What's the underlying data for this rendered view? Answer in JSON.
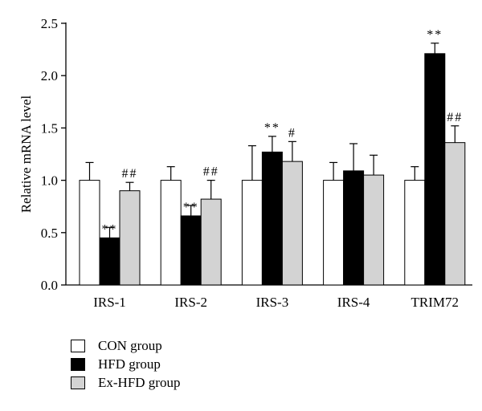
{
  "chart_data": {
    "type": "bar",
    "ylabel": "Relative mRNA level",
    "xlabel": "",
    "ylim": [
      0,
      2.5
    ],
    "yticks": [
      "0.0",
      "0.5",
      "1.0",
      "1.5",
      "2.0",
      "2.5"
    ],
    "categories": [
      "IRS-1",
      "IRS-2",
      "IRS-3",
      "IRS-4",
      "TRIM72"
    ],
    "series": [
      {
        "name": "CON group",
        "color": "#ffffff",
        "values": [
          1.0,
          1.0,
          1.0,
          1.0,
          1.0
        ],
        "errors": [
          0.17,
          0.13,
          0.33,
          0.17,
          0.13
        ],
        "annotations": [
          "",
          "",
          "",
          "",
          ""
        ]
      },
      {
        "name": "HFD group",
        "color": "#000000",
        "values": [
          0.45,
          0.66,
          1.27,
          1.09,
          2.21
        ],
        "errors": [
          0.1,
          0.1,
          0.15,
          0.26,
          0.1
        ],
        "annotations": [
          "**",
          "**",
          "**",
          "",
          "**"
        ]
      },
      {
        "name": "Ex-HFD group",
        "color": "#d3d3d3",
        "values": [
          0.9,
          0.82,
          1.18,
          1.05,
          1.36
        ],
        "errors": [
          0.08,
          0.18,
          0.19,
          0.19,
          0.16
        ],
        "annotations": [
          "##",
          "##",
          "#",
          "",
          "##"
        ]
      }
    ],
    "grid": false,
    "legend_position": "bottom-left"
  }
}
